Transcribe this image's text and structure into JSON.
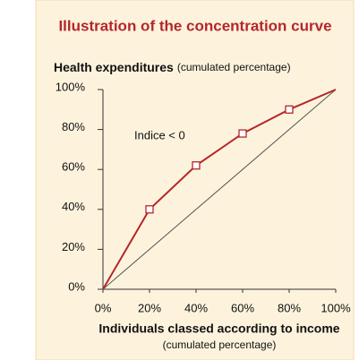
{
  "chart_data": {
    "type": "line",
    "title": "Illustration of the concentration curve",
    "y_label": "Health expenditures",
    "y_label_note": "(cumulated percentage)",
    "x_label": "Individuals classed according to income",
    "x_label_note": "(cumulated percentage)",
    "annotation": "Indice < 0",
    "x": [
      0,
      20,
      40,
      60,
      80,
      100
    ],
    "series": [
      {
        "color": "#b5262b",
        "values": [
          0,
          40,
          62,
          78,
          90,
          100
        ]
      }
    ],
    "reference_line": {
      "color": "#555555",
      "x": [
        0,
        100
      ],
      "values": [
        0,
        100
      ]
    },
    "xlim": [
      0,
      100
    ],
    "ylim": [
      0,
      100
    ],
    "xticks": [
      {
        "value": 0,
        "label": "0%"
      },
      {
        "value": 20,
        "label": "20%"
      },
      {
        "value": 40,
        "label": "40%"
      },
      {
        "value": 60,
        "label": "60%"
      },
      {
        "value": 80,
        "label": "80%"
      },
      {
        "value": 100,
        "label": "100%"
      }
    ],
    "yticks": [
      {
        "value": 0,
        "label": "0%"
      },
      {
        "value": 20,
        "label": "20%"
      },
      {
        "value": 40,
        "label": "40%"
      },
      {
        "value": 60,
        "label": "60%"
      },
      {
        "value": 80,
        "label": "80%"
      },
      {
        "value": 100,
        "label": "100%"
      }
    ]
  }
}
